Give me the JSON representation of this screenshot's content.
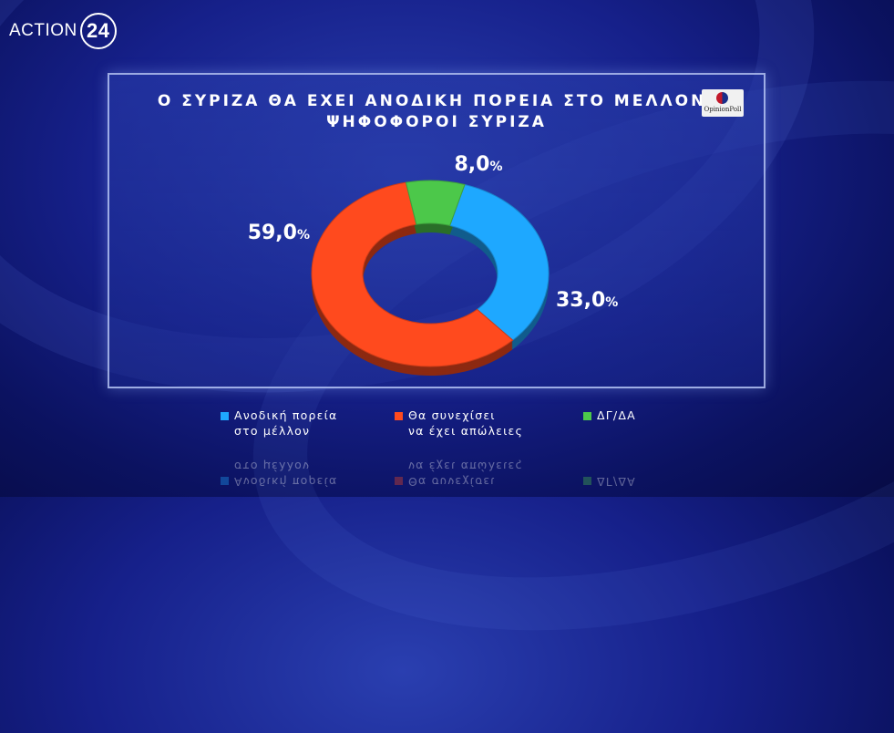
{
  "brand": {
    "name": "ACTION",
    "number": "24"
  },
  "pollster": "OpinionPoll",
  "chart_data": {
    "type": "pie",
    "title_lines": [
      "Ο ΣΥΡΙΖΑ ΘΑ ΕΧΕΙ ΑΝΟΔΙΚΗ ΠΟΡΕΙΑ ΣΤΟ ΜΕΛΛΟΝ;",
      "ΨΗΦΟΦΟΡΟΙ ΣΥΡΙΖΑ"
    ],
    "slices": [
      {
        "label": "Ανοδική πορεία\nστο μέλλον",
        "value": 33.0,
        "display": "33,0",
        "color": "#1ea8ff"
      },
      {
        "label": "Θα συνεχίσει\nνα έχει απώλειες",
        "value": 59.0,
        "display": "59,0",
        "color": "#ff4a1e"
      },
      {
        "label": "ΔΓ/ΔΑ",
        "value": 8.0,
        "display": "8,0",
        "color": "#4cc84a"
      }
    ],
    "unit": "%",
    "legend_position": "bottom"
  }
}
